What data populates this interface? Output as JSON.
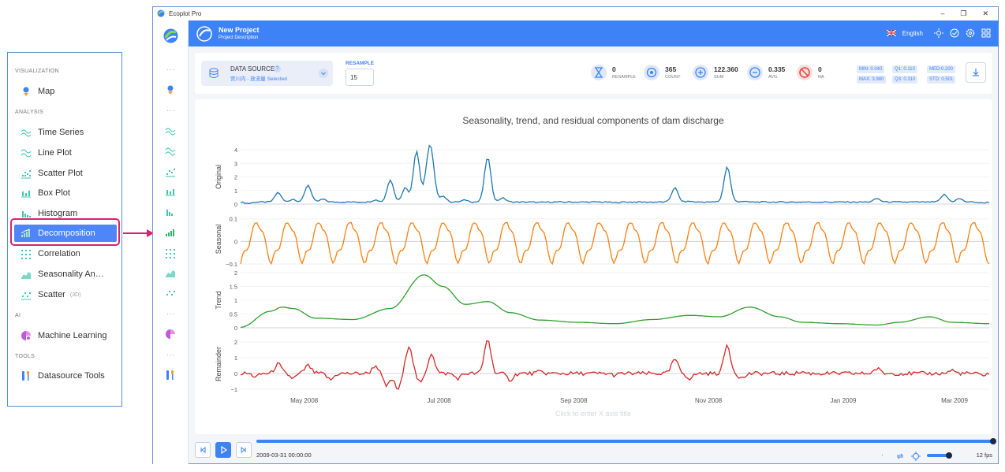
{
  "callout_menu": {
    "sections": [
      {
        "title": "VISUALIZATION",
        "items": [
          {
            "label": "Map",
            "icon": "map-pin-icon"
          }
        ]
      },
      {
        "title": "ANALYSIS",
        "items": [
          {
            "label": "Time Series",
            "icon": "time-series-icon"
          },
          {
            "label": "Line Plot",
            "icon": "line-plot-icon"
          },
          {
            "label": "Scatter Plot",
            "icon": "scatter-plot-icon"
          },
          {
            "label": "Box Plot",
            "icon": "box-plot-icon"
          },
          {
            "label": "Histogram",
            "icon": "histogram-icon"
          },
          {
            "label": "Decomposition",
            "icon": "decomposition-icon",
            "active": true
          },
          {
            "label": "Correlation",
            "icon": "correlation-icon"
          },
          {
            "label": "Seasonality An…",
            "icon": "seasonality-icon"
          },
          {
            "label": "Scatter",
            "badge": "(3D)",
            "icon": "scatter-3d-icon"
          }
        ]
      },
      {
        "title": "AI",
        "items": [
          {
            "label": "Machine Learning",
            "icon": "machine-learning-icon"
          }
        ]
      },
      {
        "title": "TOOLS",
        "items": [
          {
            "label": "Datasource Tools",
            "icon": "tools-icon"
          }
        ]
      }
    ]
  },
  "window": {
    "app_title": "Ecoplot Pro",
    "controls": {
      "minimize": "–",
      "restore": "❐",
      "close": "✕"
    }
  },
  "header": {
    "project_title": "New Project",
    "project_desc": "Project Description",
    "language": "English"
  },
  "data_panel": {
    "datasource_label": "DATA SOURCE",
    "datasource_help": "?",
    "datasource_selected": "宮川内 - 放流量 Selected",
    "resample_label": "RESAMPLE",
    "resample_value": "15",
    "stats": [
      {
        "value": "0",
        "name": "RESAMPLE",
        "icon": "hourglass-icon"
      },
      {
        "value": "365",
        "name": "COUNT",
        "icon": "target-icon"
      },
      {
        "value": "122.360",
        "name": "SUM",
        "icon": "plus-circle-icon"
      },
      {
        "value": "0.335",
        "name": "AVG.",
        "icon": "minus-circle-icon"
      },
      {
        "value": "0",
        "name": "NA",
        "icon": "ban-icon"
      }
    ],
    "quantiles": {
      "min": "MIN: 0.040",
      "q1": "Q1:   0.110",
      "med": "MED:0.200",
      "max": "MAX: 3.980",
      "q3": "Q3:   0.310",
      "std": "STD: 0.501"
    }
  },
  "chart_data": {
    "type": "line",
    "title": "Seasonality, trend, and residual components of dam discharge",
    "xlabel_placeholder": "Click to enter X axis title",
    "x_ticks": [
      "May 2008",
      "Jul 2008",
      "Sep 2008",
      "Nov 2008",
      "Jan 2009",
      "Mar 2009"
    ],
    "colors": {
      "Original": "#1f77b4",
      "Seasonal": "#ff7f0e",
      "Trend": "#2ca02c",
      "Remainder": "#d62728"
    },
    "subplots": [
      {
        "ylabel": "Original",
        "ylim": [
          0,
          4
        ],
        "ticks": [
          "0",
          "1",
          "2",
          "3",
          "4"
        ],
        "peaks": [
          [
            0.01,
            0.05
          ],
          [
            0.05,
            0.85
          ],
          [
            0.07,
            0.35
          ],
          [
            0.09,
            1.4
          ],
          [
            0.11,
            0.35
          ],
          [
            0.18,
            0.3
          ],
          [
            0.2,
            1.8
          ],
          [
            0.22,
            1.2
          ],
          [
            0.235,
            3.9
          ],
          [
            0.25,
            2.3
          ],
          [
            0.255,
            3.0
          ],
          [
            0.27,
            0.6
          ],
          [
            0.3,
            0.3
          ],
          [
            0.33,
            3.45
          ],
          [
            0.35,
            0.45
          ],
          [
            0.4,
            0.12
          ],
          [
            0.5,
            0.1
          ],
          [
            0.55,
            0.15
          ],
          [
            0.58,
            1.2
          ],
          [
            0.6,
            0.2
          ],
          [
            0.65,
            2.75
          ],
          [
            0.67,
            0.2
          ],
          [
            0.8,
            0.15
          ],
          [
            0.85,
            0.4
          ],
          [
            0.9,
            0.15
          ],
          [
            0.94,
            0.7
          ],
          [
            0.96,
            0.4
          ],
          [
            0.99,
            0.08
          ]
        ]
      },
      {
        "ylabel": "Seasonal",
        "ylim": [
          -0.1,
          0.12
        ],
        "ticks": [
          "0.1",
          "0",
          "−0.1"
        ],
        "cycles": 24,
        "amplitude": 0.1
      },
      {
        "ylabel": "Trend",
        "ylim": [
          0,
          2
        ],
        "ticks": [
          "2",
          "1.5",
          "1",
          "0.5",
          "0"
        ],
        "points": [
          [
            0,
            0.02
          ],
          [
            0.04,
            0.6
          ],
          [
            0.055,
            0.75
          ],
          [
            0.07,
            0.7
          ],
          [
            0.1,
            0.35
          ],
          [
            0.15,
            0.3
          ],
          [
            0.2,
            0.7
          ],
          [
            0.245,
            1.92
          ],
          [
            0.27,
            1.5
          ],
          [
            0.3,
            0.85
          ],
          [
            0.33,
            0.95
          ],
          [
            0.36,
            0.55
          ],
          [
            0.4,
            0.28
          ],
          [
            0.45,
            0.2
          ],
          [
            0.5,
            0.15
          ],
          [
            0.55,
            0.3
          ],
          [
            0.6,
            0.45
          ],
          [
            0.64,
            0.4
          ],
          [
            0.68,
            0.75
          ],
          [
            0.72,
            0.4
          ],
          [
            0.75,
            0.2
          ],
          [
            0.8,
            0.15
          ],
          [
            0.85,
            0.1
          ],
          [
            0.88,
            0.2
          ],
          [
            0.92,
            0.4
          ],
          [
            0.95,
            0.2
          ],
          [
            1.0,
            0.15
          ]
        ]
      },
      {
        "ylabel": "Remainder",
        "ylim": [
          -1,
          2.2
        ],
        "ticks": [
          "2",
          "1",
          "0",
          "−1"
        ],
        "peaks": [
          [
            0.02,
            -0.2
          ],
          [
            0.05,
            0.6
          ],
          [
            0.07,
            -0.3
          ],
          [
            0.09,
            0.5
          ],
          [
            0.12,
            -0.4
          ],
          [
            0.18,
            0.5
          ],
          [
            0.195,
            -0.8
          ],
          [
            0.21,
            -1.0
          ],
          [
            0.225,
            1.8
          ],
          [
            0.24,
            -0.6
          ],
          [
            0.255,
            1.3
          ],
          [
            0.29,
            -0.3
          ],
          [
            0.33,
            2.2
          ],
          [
            0.36,
            -0.4
          ],
          [
            0.4,
            0.1
          ],
          [
            0.5,
            -0.1
          ],
          [
            0.58,
            0.9
          ],
          [
            0.6,
            -0.3
          ],
          [
            0.65,
            1.8
          ],
          [
            0.67,
            -0.3
          ],
          [
            0.75,
            0.1
          ],
          [
            0.85,
            0.3
          ],
          [
            0.95,
            0.2
          ],
          [
            0.99,
            -0.1
          ]
        ]
      }
    ]
  },
  "playback": {
    "timestamp": "2009-03-31 00:00:00",
    "fps": "12 fps",
    "dot": "·"
  }
}
